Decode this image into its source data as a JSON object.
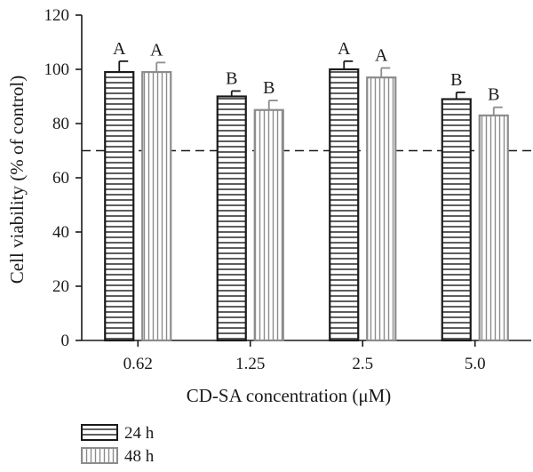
{
  "chart_data": {
    "type": "bar",
    "xlabel": "CD-SA concentration (μM)",
    "ylabel": "Cell viability (% of control)",
    "ylim": [
      0,
      120
    ],
    "yticks": [
      "0",
      "20",
      "40",
      "60",
      "80",
      "100",
      "120"
    ],
    "categories": [
      "0.62",
      "1.25",
      "2.5",
      "5.0"
    ],
    "reference_line": 70,
    "series": [
      {
        "name": "24 h",
        "values": [
          99,
          90,
          100,
          89
        ],
        "errors": [
          4,
          2,
          3,
          2.5
        ],
        "labels": [
          "A",
          "B",
          "A",
          "B"
        ],
        "color": "#1a1a1a",
        "pattern": "horizontal-lines"
      },
      {
        "name": "48 h",
        "values": [
          99,
          85,
          97,
          83
        ],
        "errors": [
          3.5,
          3.5,
          3.5,
          3
        ],
        "labels": [
          "A",
          "B",
          "A",
          "B"
        ],
        "color": "#8c8c8c",
        "pattern": "vertical-lines"
      }
    ],
    "legend_position": "bottom-left",
    "grid": false
  }
}
